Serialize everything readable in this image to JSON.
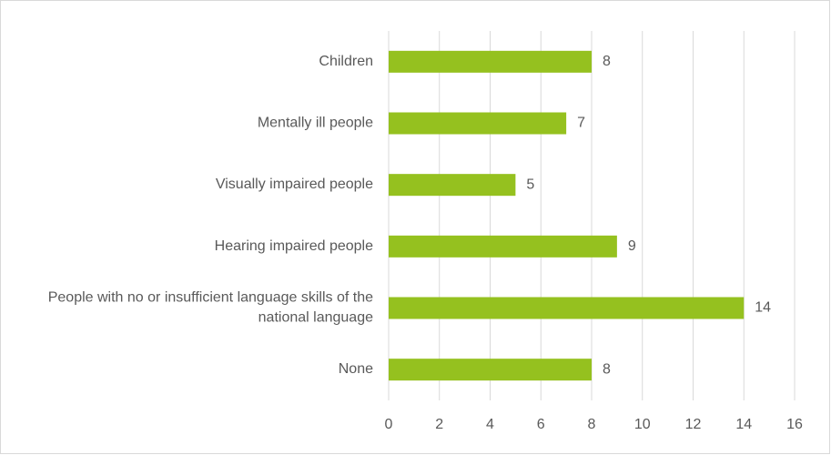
{
  "chart_data": {
    "type": "bar",
    "orientation": "horizontal",
    "categories": [
      "Children",
      "Mentally ill people",
      "Visually impaired people",
      "Hearing impaired people",
      "People with no or insufficient language skills of the national language",
      "None"
    ],
    "values": [
      8,
      7,
      5,
      9,
      14,
      8
    ],
    "color": "#95c11f",
    "xlim": [
      0,
      16
    ],
    "xticks": [
      0,
      2,
      4,
      6,
      8,
      10,
      12,
      14,
      16
    ],
    "grid": true
  }
}
